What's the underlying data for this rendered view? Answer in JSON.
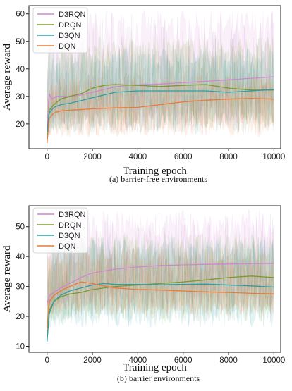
{
  "chart_data": [
    {
      "type": "line",
      "caption": "(a) barrier-free environments",
      "xlabel": "Training epoch",
      "ylabel": "Average reward",
      "xlim": [
        -800,
        10300
      ],
      "ylim": [
        11,
        63
      ],
      "xticks": [
        0,
        2000,
        4000,
        6000,
        8000,
        10000
      ],
      "yticks": [
        20,
        30,
        40,
        50,
        60
      ],
      "grid": false,
      "legend_position": "top-left",
      "series": [
        {
          "name": "D3RQN",
          "color": "#cf87cf",
          "x": [
            0,
            100,
            200,
            400,
            600,
            800,
            1000,
            1500,
            2000,
            2500,
            3000,
            3500,
            4000,
            5000,
            6000,
            7000,
            8000,
            9000,
            10000
          ],
          "y": [
            18,
            31,
            29,
            30,
            30,
            30,
            30,
            30.5,
            31.5,
            32.5,
            33.5,
            34,
            34.2,
            34.5,
            35,
            35.5,
            36,
            36.6,
            37.1
          ],
          "band_low": 18,
          "band_high": 62
        },
        {
          "name": "DRQN",
          "color": "#7a9a2e",
          "x": [
            0,
            100,
            300,
            600,
            1000,
            1500,
            2000,
            2500,
            3000,
            4000,
            5000,
            6000,
            7000,
            8000,
            9000,
            10000
          ],
          "y": [
            16,
            25,
            27,
            29,
            30,
            31,
            33,
            34,
            34.3,
            34,
            33.6,
            34,
            34.3,
            33,
            32.3,
            32.3
          ],
          "band_low": 18,
          "band_high": 52
        },
        {
          "name": "D3QN",
          "color": "#2a9fa8",
          "x": [
            0,
            100,
            300,
            600,
            1000,
            1500,
            2000,
            2500,
            3000,
            4000,
            5000,
            6000,
            7000,
            8000,
            9000,
            10000
          ],
          "y": [
            17,
            24,
            26,
            27,
            27.5,
            28.5,
            29.5,
            30.5,
            31.5,
            32,
            32,
            32,
            32,
            31.5,
            32,
            32.5
          ],
          "band_low": 16,
          "band_high": 48
        },
        {
          "name": "DQN",
          "color": "#e87a3a",
          "x": [
            0,
            100,
            300,
            600,
            1000,
            1500,
            2000,
            3000,
            4000,
            5000,
            6000,
            7000,
            8000,
            9000,
            10000
          ],
          "y": [
            13,
            22,
            24,
            24.7,
            25,
            25.2,
            25.5,
            25.8,
            26,
            27,
            28,
            28.6,
            29,
            29.3,
            29
          ],
          "band_low": 15,
          "band_high": 38
        }
      ]
    },
    {
      "type": "line",
      "caption": "(b) barrier environments",
      "xlabel": "Training epoch",
      "ylabel": "Average reward",
      "xlim": [
        -800,
        10300
      ],
      "ylim": [
        8,
        57
      ],
      "xticks": [
        0,
        2000,
        4000,
        6000,
        8000,
        10000
      ],
      "yticks": [
        10,
        20,
        30,
        40,
        50
      ],
      "grid": false,
      "legend_position": "top-left",
      "series": [
        {
          "name": "D3RQN",
          "color": "#cf87cf",
          "x": [
            0,
            100,
            300,
            600,
            1000,
            1500,
            2000,
            3000,
            4000,
            5000,
            6000,
            7000,
            8000,
            9000,
            10000
          ],
          "y": [
            24,
            27,
            28,
            29.5,
            31,
            33,
            34.5,
            35.8,
            36.5,
            37,
            37.2,
            37.4,
            37.5,
            37.6,
            37.7
          ],
          "band_low": 22,
          "band_high": 56
        },
        {
          "name": "DRQN",
          "color": "#7a9a2e",
          "x": [
            0,
            100,
            300,
            600,
            1000,
            1500,
            2000,
            3000,
            4000,
            5000,
            6000,
            7000,
            8000,
            9000,
            10000
          ],
          "y": [
            12,
            22,
            25,
            26.5,
            27.5,
            28,
            29,
            30,
            30.5,
            31,
            31.5,
            32.2,
            33,
            33.5,
            33
          ],
          "band_low": 18,
          "band_high": 48
        },
        {
          "name": "D3QN",
          "color": "#2a9fa8",
          "x": [
            0,
            100,
            300,
            600,
            1000,
            1500,
            2000,
            2500,
            3000,
            4000,
            5000,
            6000,
            7000,
            8000,
            9000,
            10000
          ],
          "y": [
            11.5,
            21,
            25,
            27,
            28.5,
            29.5,
            30.5,
            31,
            30.7,
            30.7,
            30.6,
            30.7,
            30.8,
            30.5,
            30.2,
            29.8
          ],
          "band_low": 16,
          "band_high": 47
        },
        {
          "name": "DQN",
          "color": "#e87a3a",
          "x": [
            0,
            100,
            300,
            600,
            1000,
            1500,
            2000,
            2500,
            3000,
            4000,
            5000,
            6000,
            7000,
            8000,
            9000,
            10000
          ],
          "y": [
            16,
            25,
            27,
            28.5,
            30,
            31.5,
            31,
            30.2,
            29.5,
            29,
            28.8,
            28.5,
            28.2,
            28,
            27.7,
            27.5
          ],
          "band_low": 20,
          "band_high": 43
        }
      ]
    }
  ]
}
